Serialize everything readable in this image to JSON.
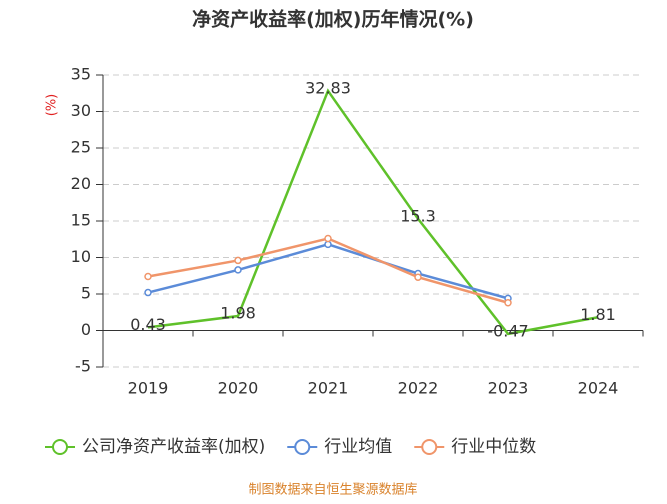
{
  "chart_data": {
    "type": "line",
    "title": "净资产收益率(加权)历年情况(%)",
    "y_label": "(%)",
    "categories": [
      "2019",
      "2020",
      "2021",
      "2022",
      "2023",
      "2024"
    ],
    "series": [
      {
        "name": "公司净资产收益率(加权)",
        "color": "#5fc12a",
        "values": [
          0.43,
          1.98,
          32.83,
          15.3,
          -0.47,
          1.81
        ],
        "data_labels": true,
        "markers": false
      },
      {
        "name": "行业均值",
        "color": "#5b8bd8",
        "values": [
          5.2,
          8.3,
          11.8,
          7.8,
          4.4,
          null
        ],
        "markers": true
      },
      {
        "name": "行业中位数",
        "color": "#f0956a",
        "values": [
          7.4,
          9.6,
          12.6,
          7.3,
          3.8,
          null
        ],
        "markers": true
      }
    ],
    "ylim": [
      -5,
      35
    ],
    "yticks": [
      -5,
      0,
      5,
      10,
      15,
      20,
      25,
      30,
      35
    ],
    "grid": true,
    "footer": "制图数据来自恒生聚源数据库"
  }
}
